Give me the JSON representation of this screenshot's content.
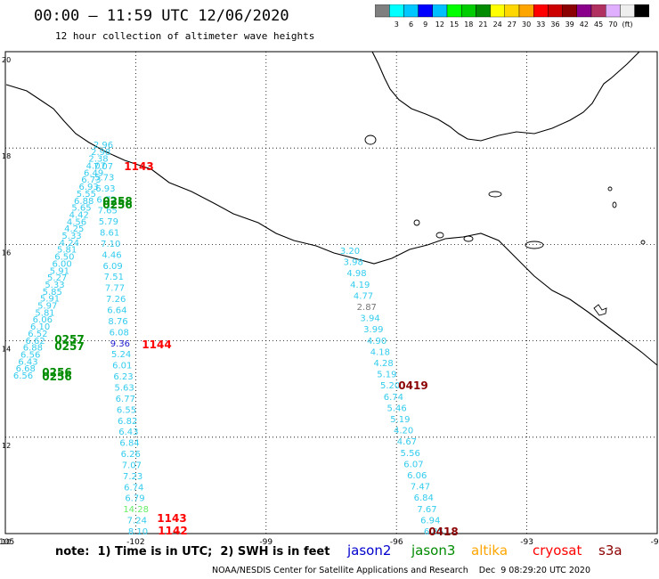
{
  "title": "00:00 — 11:59 UTC 12/06/2020",
  "subtitle": "12 hour collection of altimeter wave heights",
  "colorbar": {
    "colors": [
      "#7f7f7f",
      "#00ffff",
      "#00c8ff",
      "#0000ff",
      "#00bfff",
      "#00ff00",
      "#00cd00",
      "#008b00",
      "#ffff00",
      "#ffd700",
      "#ffa500",
      "#ff0000",
      "#cd0000",
      "#8b0000",
      "#8b008b",
      "#b03060",
      "#e0b0ff",
      "#eeeeee",
      "#000000"
    ],
    "labels": [
      "3",
      "6",
      "9",
      "12",
      "15",
      "18",
      "21",
      "24",
      "27",
      "30",
      "33",
      "36",
      "39",
      "42",
      "45",
      "70",
      "(ft)"
    ]
  },
  "axes": {
    "lon": [
      -105,
      -102,
      -99,
      -96,
      -93,
      -90
    ],
    "lon_labels": [
      "-105",
      "-102",
      "-99",
      "-96",
      "-93",
      "-90"
    ],
    "lat": [
      10,
      12,
      14,
      16,
      18,
      20
    ],
    "lat_labels": [
      "10",
      "12",
      "14",
      "16",
      "18",
      "20"
    ]
  },
  "tracks": {
    "left_cyan": {
      "color": "#33ccee",
      "values": [
        "2.96",
        "2.98",
        "2.38",
        "4.07",
        "6.49",
        "6.73",
        "6.93",
        "5.55",
        "6.88",
        "5.65",
        "4.42",
        "4.56",
        "4.25",
        "5.33",
        "4.24",
        "5.81",
        "6.50",
        "6.00",
        "5.91",
        "5.27",
        "5.33",
        "5.85",
        "5.91",
        "5.97",
        "5.81",
        "6.06",
        "6.10",
        "6.52",
        "6.62",
        "6.88",
        "6.56",
        "6.43",
        "6.68",
        "6.56"
      ]
    },
    "middle_cyan": {
      "color": "#33ccee",
      "values": [
        "7.07",
        "5.73",
        "6.93",
        "6.72",
        "7.65",
        "5.79",
        "8.61",
        "7.10",
        "4.46",
        "6.09",
        "7.51",
        "7.77",
        "7.26",
        "6.64",
        "8.76",
        "6.08",
        "9.36",
        "5.24",
        "6.01",
        "6.23",
        "5.63",
        "6.77",
        "6.55",
        "6.82",
        "6.43",
        "6.84",
        "6.26",
        "7.07",
        "7.23",
        "6.74",
        "6.79",
        "14.28",
        "7.24",
        "8.10"
      ]
    },
    "right_cyan": {
      "color": "#33ccee",
      "values": [
        "3.20",
        "3.98",
        "4.98",
        "4.19",
        "4.77",
        "2.87",
        "3.94",
        "3.99",
        "4.90",
        "4.18",
        "4.28",
        "5.19",
        "5.20",
        "6.74",
        "5.46",
        "5.19",
        "4.20",
        "4.67",
        "5.56",
        "6.07",
        "6.06",
        "7.47",
        "6.84",
        "7.67",
        "6.94",
        "6.85"
      ]
    }
  },
  "time_labels": [
    {
      "text": "1143",
      "color": "#ff0000"
    },
    {
      "text": "0258",
      "color": "#008b00"
    },
    {
      "text": "0256",
      "color": "#008b00"
    },
    {
      "text": "1144",
      "color": "#ff0000"
    },
    {
      "text": "0257",
      "color": "#008b00"
    },
    {
      "text": "0257",
      "color": "#008b00"
    },
    {
      "text": "0256",
      "color": "#008b00"
    },
    {
      "text": "0256",
      "color": "#008b00"
    },
    {
      "text": "0419",
      "color": "#8b0000"
    },
    {
      "text": "1143",
      "color": "#ff0000"
    },
    {
      "text": "1142",
      "color": "#ff0000"
    },
    {
      "text": "0418",
      "color": "#8b0000"
    }
  ],
  "note": "note:  1) Time is in UTC;  2) SWH is in feet",
  "satellites": [
    {
      "name": "jason2",
      "color": "#0000cd"
    },
    {
      "name": "jason3",
      "color": "#008b00"
    },
    {
      "name": "altika",
      "color": "#ffa500"
    },
    {
      "name": "cryosat",
      "color": "#ff0000"
    },
    {
      "name": "s3a",
      "color": "#8b0000"
    }
  ],
  "footer": "NOAA/NESDIS Center for Satellite Applications and Research    Dec  9 08:29:20 UTC 2020"
}
